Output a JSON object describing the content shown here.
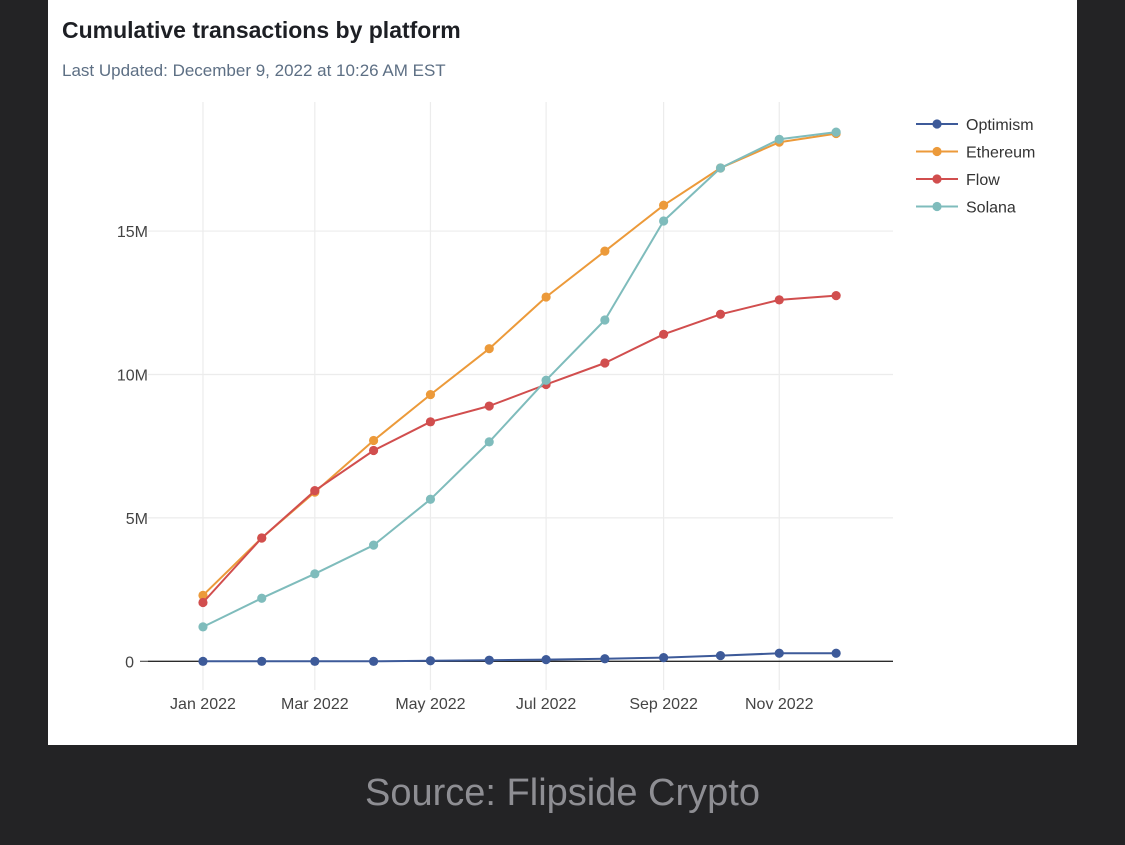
{
  "chart_data": {
    "type": "line",
    "title": "Cumulative transactions by platform",
    "subtitle": "Last Updated: December 9, 2022 at 10:26 AM EST",
    "xlabel": "",
    "ylabel": "",
    "x": [
      "2022-01-01",
      "2022-02-01",
      "2022-03-01",
      "2022-04-01",
      "2022-05-01",
      "2022-06-01",
      "2022-07-01",
      "2022-08-01",
      "2022-09-01",
      "2022-10-01",
      "2022-11-01",
      "2022-12-01"
    ],
    "x_ticks": [
      {
        "date": "2022-01-01",
        "label": "Jan 2022"
      },
      {
        "date": "2022-03-01",
        "label": "Mar 2022"
      },
      {
        "date": "2022-05-01",
        "label": "May 2022"
      },
      {
        "date": "2022-07-01",
        "label": "Jul 2022"
      },
      {
        "date": "2022-09-01",
        "label": "Sep 2022"
      },
      {
        "date": "2022-11-01",
        "label": "Nov 2022"
      }
    ],
    "y_ticks": [
      {
        "value": 0,
        "label": "0"
      },
      {
        "value": 5000000,
        "label": "5M"
      },
      {
        "value": 10000000,
        "label": "10M"
      },
      {
        "value": 15000000,
        "label": "15M"
      }
    ],
    "ylim": [
      -1000000,
      19500000
    ],
    "xlim": [
      "2021-12-03",
      "2022-12-31"
    ],
    "grid": true,
    "legend_position": "top-right",
    "series": [
      {
        "name": "Optimism",
        "color": "#3d5a99",
        "values": [
          0,
          0,
          0,
          0,
          20000,
          40000,
          60000,
          90000,
          130000,
          200000,
          280000,
          280000
        ]
      },
      {
        "name": "Ethereum",
        "color": "#ec9a3a",
        "values": [
          2300000,
          4300000,
          5900000,
          7700000,
          9300000,
          10900000,
          12700000,
          14300000,
          15900000,
          17200000,
          18100000,
          18400000
        ]
      },
      {
        "name": "Flow",
        "color": "#d14e4e",
        "values": [
          2050000,
          4300000,
          5950000,
          7350000,
          8350000,
          8900000,
          9650000,
          10400000,
          11400000,
          12100000,
          12600000,
          12750000
        ]
      },
      {
        "name": "Solana",
        "color": "#7fbcbc",
        "values": [
          1200000,
          2200000,
          3050000,
          4050000,
          5650000,
          7650000,
          9800000,
          11900000,
          15350000,
          17200000,
          18200000,
          18450000
        ]
      }
    ]
  },
  "caption": "Source: Flipside Crypto"
}
